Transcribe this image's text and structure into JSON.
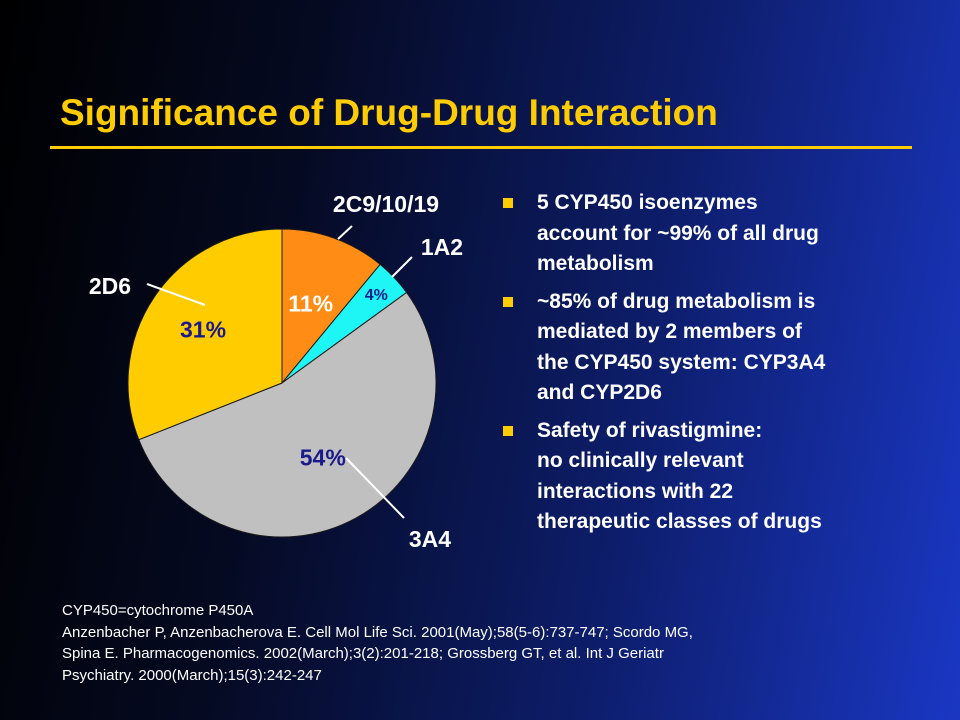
{
  "slide": {
    "title": "Significance of Drug-Drug Interaction",
    "accent_color": "#ffcc00"
  },
  "chart_data": {
    "type": "pie",
    "title": "",
    "slices": [
      {
        "label": "2C9/10/19",
        "value": 11,
        "value_label": "11%",
        "color": "#ff8c14"
      },
      {
        "label": "1A2",
        "value": 4,
        "value_label": "4%",
        "color": "#1ef5f5"
      },
      {
        "label": "3A4",
        "value": 54,
        "value_label": "54%",
        "color": "#c0c0c0"
      },
      {
        "label": "2D6",
        "value": 31,
        "value_label": "31%",
        "color": "#ffcc00"
      }
    ]
  },
  "bullets": [
    {
      "text": "5 CYP450 isoenzymes\naccount for ~99% of all drug\nmetabolism"
    },
    {
      "text": " ~85% of drug metabolism is\nmediated by 2 members of\nthe CYP450 system: CYP3A4\nand CYP2D6"
    },
    {
      "text": "Safety of rivastigmine:\nno clinically relevant\ninteractions with 22\ntherapeutic classes of drugs"
    }
  ],
  "footnote": {
    "line1": "CYP450=cytochrome P450A",
    "line2": "Anzenbacher P, Anzenbacherova E. Cell Mol Life Sci. 2001(May);58(5-6):737-747; Scordo MG,",
    "line3": "Spina E. Pharmacogenomics. 2002(March);3(2):201-218; Grossberg GT, et al. Int J Geriatr",
    "line4": "Psychiatry. 2000(March);15(3):242-247"
  }
}
